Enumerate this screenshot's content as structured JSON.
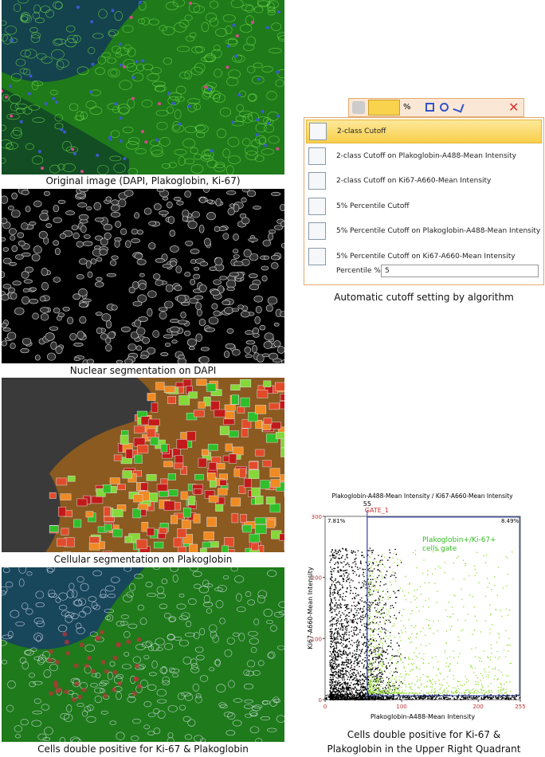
{
  "panels": [
    {
      "caption": "Original image (DAPI, Plakoglobin, Ki-67)"
    },
    {
      "caption": "Nuclear segmentation on DAPI"
    },
    {
      "caption": "Cellular segmentation on Plakoglobin"
    },
    {
      "caption": "Cells double positive for Ki-67 & Plakoglobin"
    }
  ],
  "menu": {
    "toolbar_label": "%",
    "items": [
      "2-class Cutoff",
      "2-class Cutoff on Plakoglobin-A488-Mean Intensity",
      "2-class Cutoff on Ki67-A660-Mean Intensity",
      "5% Percentile Cutoff",
      "5% Percentile Cutoff on Plakoglobin-A488-Mean Intensity",
      "5% Percentile Cutoff on Ki67-A660-Mean Intensity"
    ],
    "percentile_label": "Percentile %",
    "percentile_value": "5",
    "caption": "Automatic cutoff setting by algorithm"
  },
  "scatter": {
    "title": "Plakoglobin-A488-Mean Intensity / Ki67-A660-Mean Intensity",
    "x_label": "Plakoglobin-A488-Mean Intensity",
    "y_label": "Ki67-A660-Mean Intensity",
    "xlim": [
      0,
      255
    ],
    "ylim": [
      0,
      300
    ],
    "xticks": [
      0,
      100,
      200,
      255
    ],
    "yticks": [
      0,
      100,
      200,
      300
    ],
    "gate_name": "GATE_1",
    "gate_x": 55,
    "quadrant_labels": [
      "7.81%",
      "8.49%"
    ],
    "gate_annotation": [
      "Plakoglobin+/Ki-67+",
      "cells gate"
    ],
    "caption": [
      "Cells double positive for Ki-67 &",
      "Plakoglobin in the Upper Right Quadrant"
    ]
  }
}
